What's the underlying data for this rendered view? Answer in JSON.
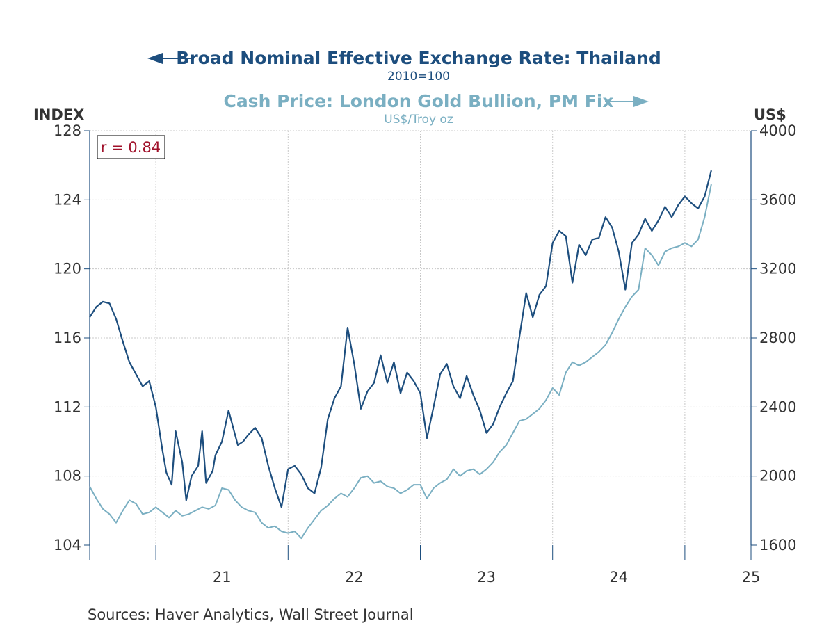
{
  "chart_data": {
    "type": "line",
    "title": "Broad Nominal Effective Exchange Rate: Thailand",
    "subtitle": "2010=100",
    "right_title": "Cash Price: London Gold Bullion, PM Fix",
    "right_subtitle": "US$/Troy oz",
    "left_unit": "INDEX",
    "right_unit": "US$",
    "source": "Sources:  Haver Analytics, Wall Street Journal",
    "annotation": "r = 0.84",
    "x_range": [
      2020.5,
      2025.5
    ],
    "x_ticks": [
      "21",
      "22",
      "23",
      "24",
      "25"
    ],
    "ylim_left": [
      104,
      128
    ],
    "yticks_left": [
      "104",
      "108",
      "112",
      "116",
      "120",
      "124",
      "128"
    ],
    "ylim_right": [
      1600,
      4000
    ],
    "yticks_right": [
      "1600",
      "2000",
      "2400",
      "2800",
      "3200",
      "3600",
      "4000"
    ],
    "grid": true,
    "colors": {
      "left_series": "#1d4e7e",
      "right_series": "#7aafc2",
      "annotation": "#a0112a"
    },
    "series": [
      {
        "axis": "left",
        "x": [
          2020.5,
          2020.55,
          2020.6,
          2020.65,
          2020.7,
          2020.75,
          2020.8,
          2020.85,
          2020.9,
          2020.95,
          2021.0,
          2021.05,
          2021.08,
          2021.12,
          2021.15,
          2021.2,
          2021.23,
          2021.27,
          2021.32,
          2021.35,
          2021.38,
          2021.43,
          2021.45,
          2021.5,
          2021.55,
          2021.62,
          2021.66,
          2021.7,
          2021.75,
          2021.8,
          2021.85,
          2021.9,
          2021.95,
          2022.0,
          2022.05,
          2022.1,
          2022.15,
          2022.2,
          2022.25,
          2022.3,
          2022.35,
          2022.4,
          2022.45,
          2022.5,
          2022.55,
          2022.6,
          2022.65,
          2022.7,
          2022.75,
          2022.8,
          2022.85,
          2022.9,
          2022.95,
          2023.0,
          2023.05,
          2023.1,
          2023.15,
          2023.2,
          2023.25,
          2023.3,
          2023.35,
          2023.4,
          2023.45,
          2023.5,
          2023.55,
          2023.6,
          2023.65,
          2023.7,
          2023.75,
          2023.8,
          2023.85,
          2023.9,
          2023.95,
          2024.0,
          2024.05,
          2024.1,
          2024.15,
          2024.2,
          2024.25,
          2024.3,
          2024.35,
          2024.4,
          2024.45,
          2024.5,
          2024.55,
          2024.6,
          2024.65,
          2024.7,
          2024.75,
          2024.8,
          2024.85,
          2024.9,
          2024.95,
          2025.0,
          2025.05,
          2025.1,
          2025.15,
          2025.2
        ],
        "values": [
          117.2,
          117.8,
          118.1,
          118.0,
          117.1,
          115.8,
          114.6,
          113.9,
          113.2,
          113.5,
          112.0,
          109.5,
          108.2,
          107.5,
          110.6,
          108.8,
          106.6,
          108.0,
          108.6,
          110.6,
          107.6,
          108.3,
          109.2,
          110.0,
          111.8,
          109.8,
          110.0,
          110.4,
          110.8,
          110.2,
          108.6,
          107.3,
          106.2,
          108.4,
          108.6,
          108.1,
          107.3,
          107.0,
          108.5,
          111.3,
          112.5,
          113.2,
          116.6,
          114.5,
          111.9,
          112.9,
          113.4,
          115.0,
          113.4,
          114.6,
          112.8,
          114.0,
          113.5,
          112.8,
          110.2,
          112.0,
          113.9,
          114.5,
          113.2,
          112.5,
          113.8,
          112.7,
          111.8,
          110.5,
          111.0,
          112.0,
          112.8,
          113.5,
          116.1,
          118.6,
          117.2,
          118.5,
          119.0,
          121.5,
          122.2,
          121.9,
          119.2,
          121.4,
          120.8,
          121.7,
          121.8,
          123.0,
          122.4,
          121.0,
          118.8,
          121.5,
          122.0,
          122.9,
          122.2,
          122.8,
          123.6,
          123.0,
          123.7,
          124.2,
          123.8,
          123.5,
          124.2,
          125.7
        ]
      },
      {
        "axis": "right",
        "x": [
          2020.5,
          2020.55,
          2020.6,
          2020.65,
          2020.7,
          2020.75,
          2020.8,
          2020.85,
          2020.9,
          2020.95,
          2021.0,
          2021.05,
          2021.1,
          2021.15,
          2021.2,
          2021.25,
          2021.3,
          2021.35,
          2021.4,
          2021.45,
          2021.5,
          2021.55,
          2021.6,
          2021.65,
          2021.7,
          2021.75,
          2021.8,
          2021.85,
          2021.9,
          2021.95,
          2022.0,
          2022.05,
          2022.1,
          2022.15,
          2022.2,
          2022.25,
          2022.3,
          2022.35,
          2022.4,
          2022.45,
          2022.5,
          2022.55,
          2022.6,
          2022.65,
          2022.7,
          2022.75,
          2022.8,
          2022.85,
          2022.9,
          2022.95,
          2023.0,
          2023.05,
          2023.1,
          2023.15,
          2023.2,
          2023.25,
          2023.3,
          2023.35,
          2023.4,
          2023.45,
          2023.5,
          2023.55,
          2023.6,
          2023.65,
          2023.7,
          2023.75,
          2023.8,
          2023.85,
          2023.9,
          2023.95,
          2024.0,
          2024.05,
          2024.1,
          2024.15,
          2024.2,
          2024.25,
          2024.3,
          2024.35,
          2024.4,
          2024.45,
          2024.5,
          2024.55,
          2024.6,
          2024.65,
          2024.7,
          2024.75,
          2024.8,
          2024.85,
          2024.9,
          2024.95,
          2025.0,
          2025.05,
          2025.1,
          2025.15,
          2025.2
        ],
        "values": [
          1940,
          1870,
          1810,
          1780,
          1730,
          1800,
          1860,
          1840,
          1780,
          1790,
          1820,
          1790,
          1760,
          1800,
          1770,
          1780,
          1800,
          1820,
          1810,
          1830,
          1930,
          1920,
          1860,
          1820,
          1800,
          1790,
          1730,
          1700,
          1710,
          1680,
          1670,
          1680,
          1640,
          1700,
          1750,
          1800,
          1830,
          1870,
          1900,
          1880,
          1930,
          1990,
          2000,
          1960,
          1970,
          1940,
          1930,
          1900,
          1920,
          1950,
          1950,
          1870,
          1930,
          1960,
          1980,
          2040,
          2000,
          2030,
          2040,
          2010,
          2040,
          2080,
          2140,
          2180,
          2250,
          2320,
          2330,
          2360,
          2390,
          2440,
          2510,
          2470,
          2600,
          2660,
          2640,
          2660,
          2690,
          2720,
          2760,
          2830,
          2910,
          2980,
          3040,
          3080,
          3320,
          3280,
          3220,
          3300,
          3320,
          3330,
          3350,
          3330,
          3370,
          3500,
          3690
        ]
      }
    ]
  }
}
